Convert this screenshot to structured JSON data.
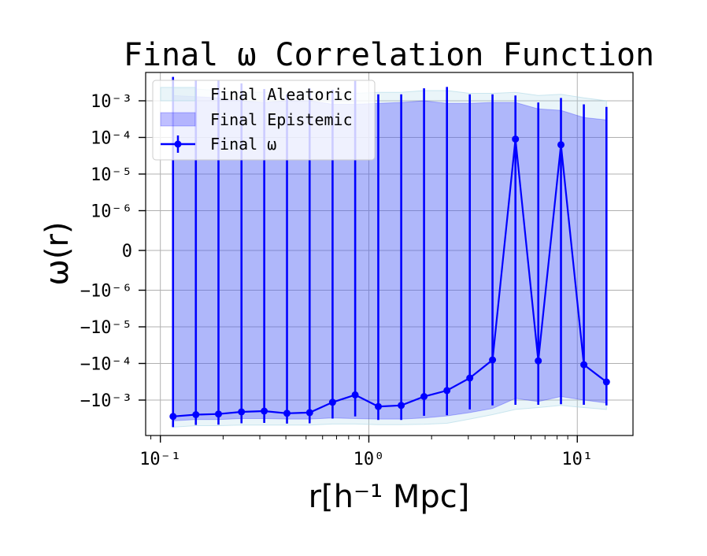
{
  "chart_data": {
    "type": "line",
    "title": "Final ω Correlation Function",
    "xlabel": "r[h⁻¹ Mpc]",
    "ylabel": "ω(r)",
    "xscale": "log",
    "yscale": "symlog",
    "xlim": [
      0.085,
      18.5
    ],
    "grid": true,
    "legend_placement": "top-left",
    "x_ticks": [
      {
        "value": 0.1,
        "label": "10⁻¹"
      },
      {
        "value": 1,
        "label": "10⁰"
      },
      {
        "value": 10,
        "label": "10¹"
      }
    ],
    "y_ticks": [
      {
        "value": 0.001,
        "label": "10⁻³"
      },
      {
        "value": 0.0001,
        "label": "10⁻⁴"
      },
      {
        "value": 1e-05,
        "label": "10⁻⁵"
      },
      {
        "value": 1e-06,
        "label": "10⁻⁶"
      },
      {
        "value": 0,
        "label": "0"
      },
      {
        "value": -1e-06,
        "label": "−10⁻⁶"
      },
      {
        "value": -1e-05,
        "label": "−10⁻⁵"
      },
      {
        "value": -0.0001,
        "label": "−10⁻⁴"
      },
      {
        "value": -0.001,
        "label": "−10⁻³"
      }
    ],
    "colors": {
      "line": "#0000ff",
      "epistemic_fill": "#0000ff",
      "aleatoric_fill": "#add8e6",
      "grid": "#b0b0b0"
    },
    "x": [
      0.115,
      0.148,
      0.19,
      0.245,
      0.315,
      0.405,
      0.52,
      0.67,
      0.86,
      1.11,
      1.43,
      1.84,
      2.37,
      3.05,
      3.92,
      5.05,
      6.5,
      8.35,
      10.75,
      13.8
    ],
    "series": [
      {
        "name": "Final ω",
        "values": [
          -0.0028,
          -0.0025,
          -0.0024,
          -0.0021,
          -0.002,
          -0.0023,
          -0.0022,
          -0.00115,
          -0.00072,
          -0.0015,
          -0.0014,
          -0.0008,
          -0.00055,
          -0.00025,
          -8e-05,
          9e-05,
          -8.5e-05,
          6.3e-05,
          -0.000108,
          -0.00032
        ],
        "err_upper": [
          0.0045,
          0.0036,
          0.0036,
          0.003,
          0.0021,
          0.0015,
          0.0022,
          0.002,
          0.0035,
          0.0015,
          0.0015,
          0.0022,
          0.0024,
          0.0015,
          0.0015,
          0.0014,
          0.0009,
          0.0012,
          0.0008,
          0.00068
        ],
        "err_lower": [
          -0.0055,
          -0.0048,
          -0.0047,
          -0.0043,
          -0.0042,
          -0.0044,
          -0.0043,
          -0.0032,
          -0.0028,
          -0.0035,
          -0.0035,
          -0.0027,
          -0.0026,
          -0.0018,
          -0.0014,
          -0.00135,
          -0.00135,
          -0.0013,
          -0.00135,
          -0.0014
        ]
      },
      {
        "name": "Final Epistemic",
        "kind": "band",
        "upper": [
          0.0014,
          0.0013,
          0.0012,
          0.001,
          0.0009,
          0.001,
          0.001,
          0.0008,
          0.0008,
          0.00085,
          0.0009,
          0.001,
          0.00085,
          0.00085,
          0.0009,
          0.0009,
          0.0006,
          0.00055,
          0.00035,
          0.0003
        ],
        "lower": [
          -0.0037,
          -0.0034,
          -0.0034,
          -0.0032,
          -0.0032,
          -0.0033,
          -0.0033,
          -0.0031,
          -0.0032,
          -0.0033,
          -0.0033,
          -0.0031,
          -0.0027,
          -0.0022,
          -0.0017,
          -0.0009,
          -0.0011,
          -0.0008,
          -0.001,
          -0.0012
        ]
      },
      {
        "name": "Final Aleatoric",
        "kind": "band",
        "upper": [
          0.0022,
          0.0021,
          0.0019,
          0.0017,
          0.0017,
          0.0017,
          0.0017,
          0.0016,
          0.0016,
          0.0017,
          0.0017,
          0.0019,
          0.0019,
          0.0016,
          0.0016,
          0.0017,
          0.0014,
          0.0015,
          0.0012,
          0.001
        ],
        "lower": [
          -0.0055,
          -0.005,
          -0.005,
          -0.0048,
          -0.0048,
          -0.0048,
          -0.0048,
          -0.0045,
          -0.0045,
          -0.0047,
          -0.0047,
          -0.0046,
          -0.0043,
          -0.0033,
          -0.0025,
          -0.0018,
          -0.0016,
          -0.0014,
          -0.0016,
          -0.0018
        ]
      }
    ]
  }
}
